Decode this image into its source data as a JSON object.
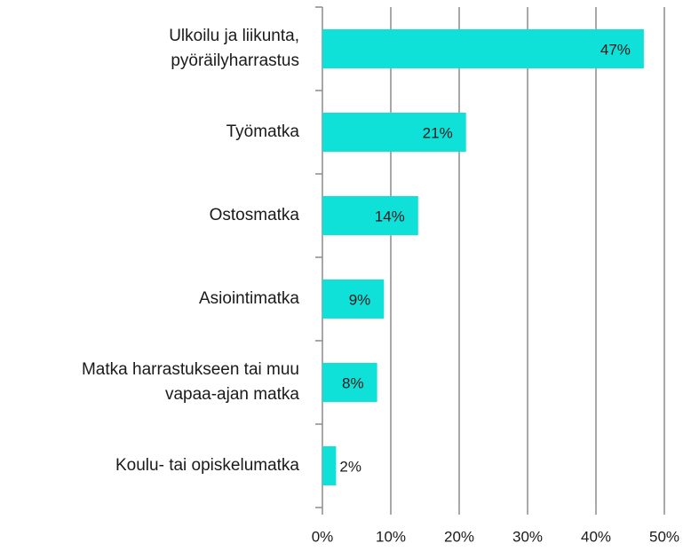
{
  "chart_data": {
    "type": "bar",
    "orientation": "horizontal",
    "categories": [
      "Ulkoilu ja liikunta,\npyöräilyharrastus",
      "Työmatka",
      "Ostosmatka",
      "Asiointimatka",
      "Matka harrastukseen tai muu\nvapaa-ajan matka",
      "Koulu- tai opiskelumatka"
    ],
    "values": [
      47,
      21,
      14,
      9,
      8,
      2
    ],
    "value_labels": [
      "47%",
      "21%",
      "14%",
      "9%",
      "8%",
      "2%"
    ],
    "color": "#0fe0d8",
    "xlim": [
      0,
      50
    ],
    "xticks": [
      {
        "value": 0,
        "label": "0%"
      },
      {
        "value": 10,
        "label": "10%"
      },
      {
        "value": 20,
        "label": "20%"
      },
      {
        "value": 30,
        "label": "30%"
      },
      {
        "value": 40,
        "label": "40%"
      },
      {
        "value": 50,
        "label": "50%"
      }
    ],
    "grid": true
  }
}
